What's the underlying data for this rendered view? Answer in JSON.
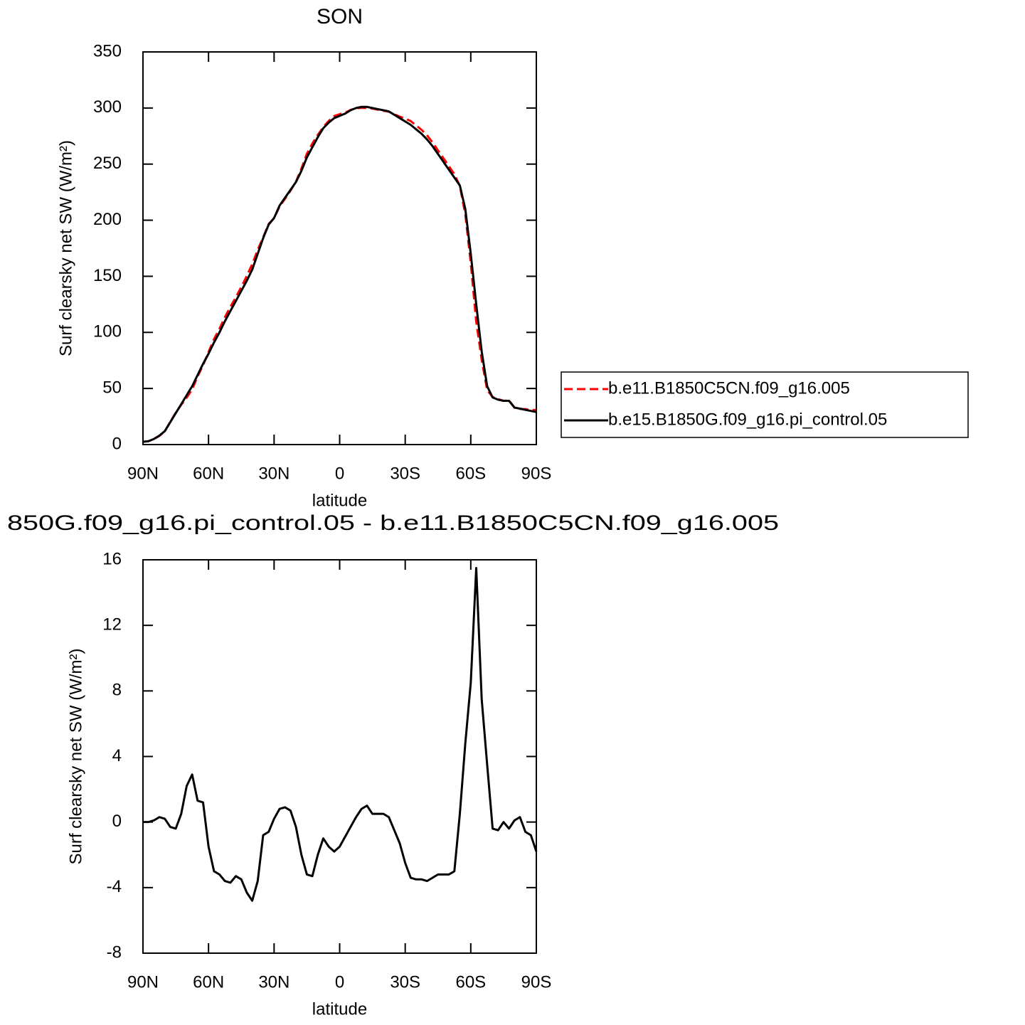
{
  "chart_data": [
    {
      "type": "line",
      "title": "SON",
      "xlabel": "latitude",
      "ylabel": "Surf clearsky net SW (W/m²)",
      "xlim": [
        90,
        -90
      ],
      "ylim": [
        0,
        350
      ],
      "xticks": [
        {
          "value": 90,
          "label": "90N"
        },
        {
          "value": 60,
          "label": "60N"
        },
        {
          "value": 30,
          "label": "30N"
        },
        0,
        {
          "value": -30,
          "label": "30S"
        },
        {
          "value": -60,
          "label": "60S"
        },
        {
          "value": -90,
          "label": "90S"
        }
      ],
      "yticks": [
        0,
        50,
        100,
        150,
        200,
        250,
        300,
        350
      ],
      "legend": "outside-right",
      "x": [
        90,
        87.5,
        85,
        82.5,
        80,
        77.5,
        75,
        72.5,
        70,
        67.5,
        65,
        62.5,
        60,
        57.5,
        55,
        52.5,
        50,
        47.5,
        45,
        42.5,
        40,
        37.5,
        35,
        32.5,
        30,
        27.5,
        25,
        22.5,
        20,
        17.5,
        15,
        12.5,
        10,
        7.5,
        5,
        2.5,
        0,
        -2.5,
        -5,
        -7.5,
        -10,
        -12.5,
        -15,
        -17.5,
        -20,
        -22.5,
        -25,
        -27.5,
        -30,
        -32.5,
        -35,
        -37.5,
        -40,
        -42.5,
        -45,
        -47.5,
        -50,
        -52.5,
        -55,
        -57.5,
        -60,
        -62.5,
        -65,
        -67.5,
        -70,
        -72.5,
        -75,
        -77.5,
        -80,
        -82.5,
        -85,
        -87.5,
        -90
      ],
      "series": [
        {
          "name": "b.e11.B1850C5CN.f09_g16.005",
          "color": "#ff0000",
          "linestyle": "dashed",
          "values": [
            2.5,
            3,
            4.9,
            7.7,
            11.8,
            20.3,
            28.4,
            35.5,
            41.8,
            49.1,
            60.7,
            70.8,
            82.5,
            94,
            103.2,
            113.6,
            122.7,
            131.3,
            140.5,
            150.3,
            160.8,
            173.6,
            184.8,
            196.6,
            201.8,
            212.2,
            219.1,
            226.3,
            234.3,
            246,
            259.2,
            268.3,
            276,
            283,
            288.5,
            292.8,
            294.5,
            295.9,
            298.3,
            299.7,
            300.2,
            300,
            299.5,
            298.5,
            297.5,
            296.7,
            294.5,
            292.3,
            290.5,
            288.4,
            284.5,
            280.5,
            275.6,
            269.4,
            262.2,
            255.2,
            248.2,
            241,
            230.5,
            205.2,
            161.5,
            109.5,
            75.5,
            48.5,
            42.4,
            40.5,
            39,
            39.4,
            32.9,
            31.7,
            31.6,
            30.8,
            30.8
          ]
        },
        {
          "name": "b.e15.B1850G.f09_g16.pi_control.05",
          "color": "#000000",
          "linestyle": "solid",
          "values": [
            2.5,
            3,
            5,
            8,
            12,
            20,
            28,
            36,
            44,
            52,
            62,
            72,
            81,
            91,
            100,
            110,
            119,
            128,
            137,
            146,
            156,
            170,
            184,
            196,
            202,
            213,
            220,
            227,
            234,
            244,
            256,
            265,
            274,
            282,
            287,
            291,
            293,
            295,
            298,
            300,
            301,
            301,
            300,
            299,
            298,
            297,
            294,
            291,
            288,
            285,
            281,
            277,
            272,
            266,
            259,
            252,
            245,
            238,
            231,
            210,
            170,
            125,
            83,
            52,
            42,
            40,
            39,
            39,
            33,
            32,
            31,
            30,
            29
          ]
        }
      ]
    },
    {
      "type": "line",
      "title": "850G.f09_g16.pi_control.05 - b.e11.B1850C5CN.f09_g16.005",
      "xlabel": "latitude",
      "ylabel": "Surf clearsky net SW (W/m²)",
      "xlim": [
        90,
        -90
      ],
      "ylim": [
        -8,
        16
      ],
      "xticks": [
        {
          "value": 90,
          "label": "90N"
        },
        {
          "value": 60,
          "label": "60N"
        },
        {
          "value": 30,
          "label": "30N"
        },
        0,
        {
          "value": -30,
          "label": "30S"
        },
        {
          "value": -60,
          "label": "60S"
        },
        {
          "value": -90,
          "label": "90S"
        }
      ],
      "yticks": [
        -8,
        -4,
        0,
        4,
        8,
        12,
        16
      ],
      "x": [
        90,
        87.5,
        85,
        82.5,
        80,
        77.5,
        75,
        72.5,
        70,
        67.5,
        65,
        62.5,
        60,
        57.5,
        55,
        52.5,
        50,
        47.5,
        45,
        42.5,
        40,
        37.5,
        35,
        32.5,
        30,
        27.5,
        25,
        22.5,
        20,
        17.5,
        15,
        12.5,
        10,
        7.5,
        5,
        2.5,
        0,
        -2.5,
        -5,
        -7.5,
        -10,
        -12.5,
        -15,
        -17.5,
        -20,
        -22.5,
        -25,
        -27.5,
        -30,
        -32.5,
        -35,
        -37.5,
        -40,
        -42.5,
        -45,
        -47.5,
        -50,
        -52.5,
        -55,
        -57.5,
        -60,
        -62.5,
        -65,
        -67.5,
        -70,
        -72.5,
        -75,
        -77.5,
        -80,
        -82.5,
        -85,
        -87.5,
        -90
      ],
      "series": [
        {
          "color": "#000000",
          "linestyle": "solid",
          "values": [
            0,
            0,
            0.1,
            0.3,
            0.2,
            -0.3,
            -0.4,
            0.5,
            2.2,
            2.9,
            1.3,
            1.2,
            -1.5,
            -3,
            -3.2,
            -3.6,
            -3.7,
            -3.3,
            -3.5,
            -4.3,
            -4.8,
            -3.6,
            -0.8,
            -0.6,
            0.2,
            0.8,
            0.9,
            0.7,
            -0.3,
            -2,
            -3.2,
            -3.3,
            -2,
            -1,
            -1.5,
            -1.8,
            -1.5,
            -0.9,
            -0.3,
            0.3,
            0.8,
            1,
            0.5,
            0.5,
            0.5,
            0.3,
            -0.5,
            -1.3,
            -2.5,
            -3.4,
            -3.5,
            -3.5,
            -3.6,
            -3.4,
            -3.2,
            -3.2,
            -3.2,
            -3,
            0.5,
            4.8,
            8.5,
            15.5,
            7.5,
            3.5,
            -0.4,
            -0.5,
            0,
            -0.4,
            0.1,
            0.3,
            -0.6,
            -0.8,
            -1.8
          ]
        }
      ]
    }
  ]
}
